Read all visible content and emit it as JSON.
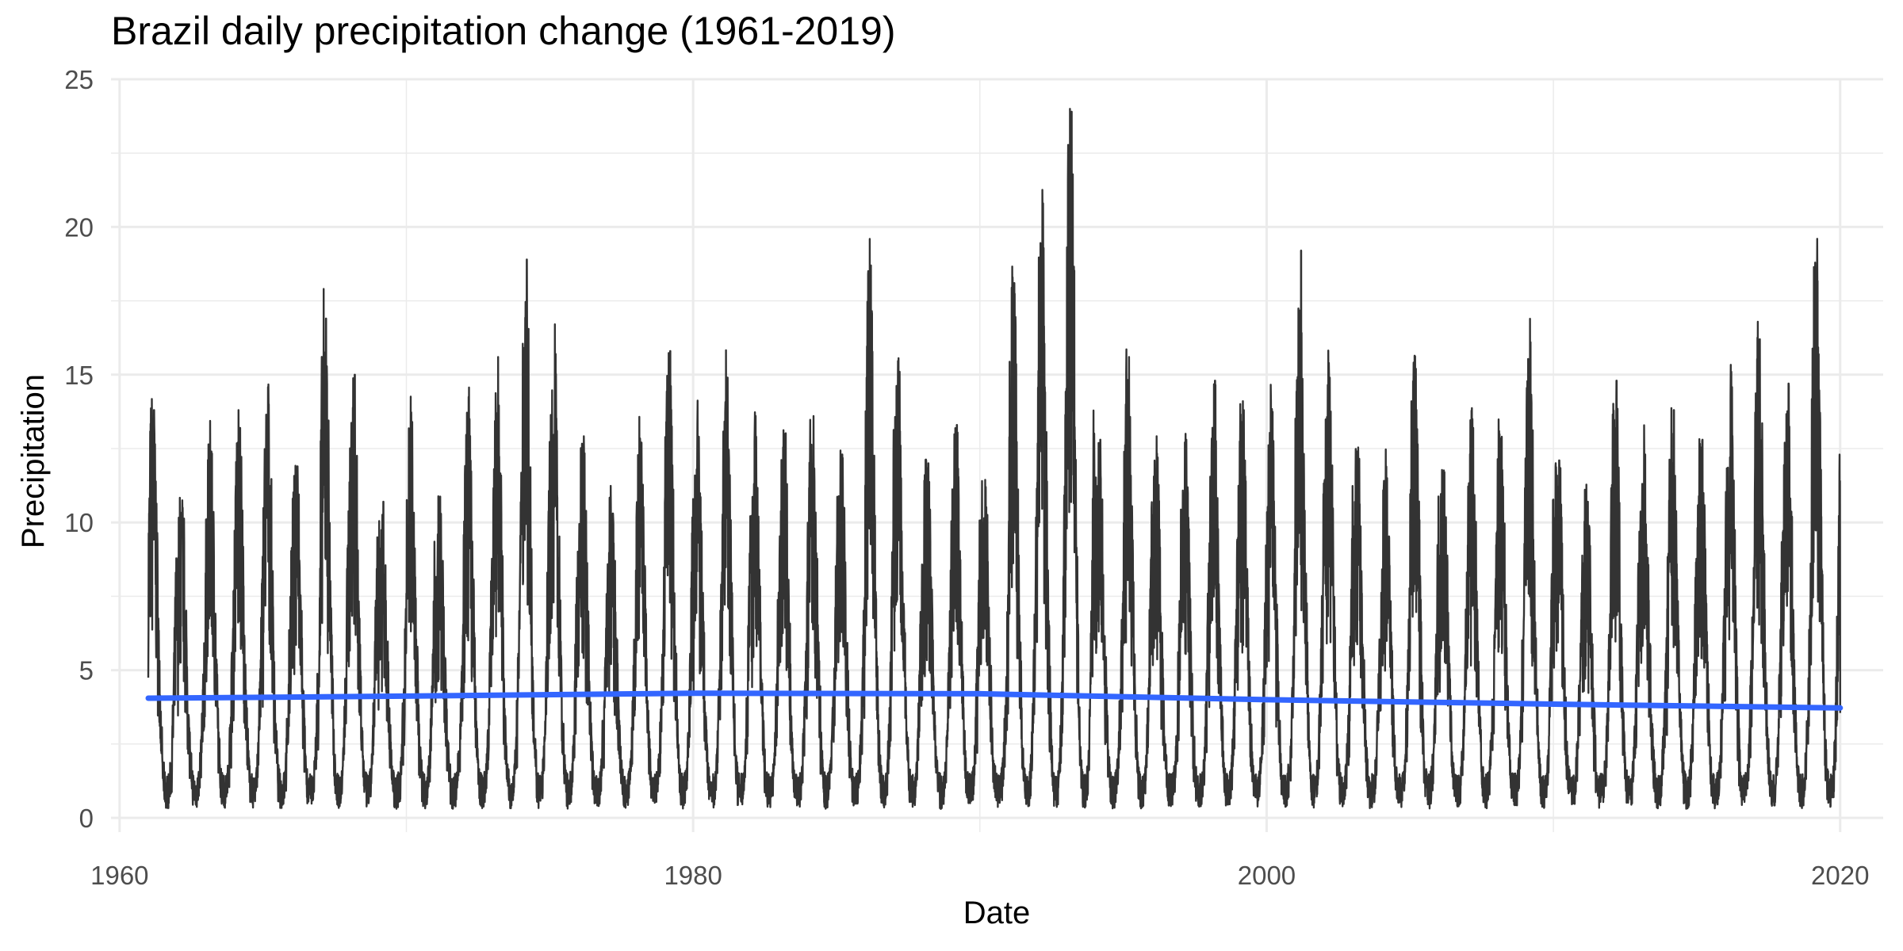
{
  "chart_data": {
    "type": "line",
    "title": "Brazil daily precipitation change (1961-2019)",
    "xlabel": "Date",
    "ylabel": "Precipitation",
    "xlim": [
      1959.7,
      2021.5
    ],
    "ylim": [
      0,
      25
    ],
    "x_ticks": [
      1960,
      1980,
      2000,
      2020
    ],
    "y_ticks": [
      0,
      5,
      10,
      15,
      20,
      25
    ],
    "grid": true,
    "legend": "none",
    "colors": {
      "series": "#333333",
      "trend": "#3366ff",
      "grid": "#ebebeb"
    },
    "series": [
      {
        "values_note_free": true,
        "x_start": 1961.0,
        "x_end": 2020.0,
        "peaks": [
          [
            1961.2,
            13.8
          ],
          [
            1962.2,
            10.5
          ],
          [
            1963.2,
            12.4
          ],
          [
            1964.2,
            13.2
          ],
          [
            1965.2,
            14.0
          ],
          [
            1966.2,
            11.9
          ],
          [
            1967.2,
            16.9
          ],
          [
            1968.2,
            15.0
          ],
          [
            1969.2,
            10.7
          ],
          [
            1970.2,
            13.4
          ],
          [
            1971.2,
            10.3
          ],
          [
            1972.2,
            13.5
          ],
          [
            1973.2,
            15.6
          ],
          [
            1974.1,
            17.5
          ],
          [
            1974.3,
            18.9
          ],
          [
            1975.2,
            15.7
          ],
          [
            1976.2,
            12.3
          ],
          [
            1977.2,
            10.3
          ],
          [
            1978.2,
            12.7
          ],
          [
            1979.2,
            15.8
          ],
          [
            1980.2,
            12.9
          ],
          [
            1981.2,
            14.9
          ],
          [
            1982.2,
            12.9
          ],
          [
            1983.2,
            13.0
          ],
          [
            1984.2,
            13.6
          ],
          [
            1985.2,
            12.3
          ],
          [
            1986.2,
            18.7
          ],
          [
            1987.2,
            15.1
          ],
          [
            1988.2,
            12.0
          ],
          [
            1989.2,
            13.3
          ],
          [
            1990.2,
            11.2
          ],
          [
            1991.2,
            18.1
          ],
          [
            1992.2,
            20.8
          ],
          [
            1993.2,
            23.9
          ],
          [
            1994.2,
            12.8
          ],
          [
            1995.2,
            15.6
          ],
          [
            1996.2,
            12.2
          ],
          [
            1997.2,
            12.8
          ],
          [
            1998.2,
            14.8
          ],
          [
            1999.2,
            13.8
          ],
          [
            2000.2,
            13.7
          ],
          [
            2001.2,
            19.2
          ],
          [
            2002.2,
            14.9
          ],
          [
            2003.2,
            12.0
          ],
          [
            2004.2,
            11.5
          ],
          [
            2005.2,
            15.2
          ],
          [
            2006.2,
            11.7
          ],
          [
            2007.2,
            13.2
          ],
          [
            2008.2,
            12.9
          ],
          [
            2009.2,
            16.1
          ],
          [
            2010.2,
            12.1
          ],
          [
            2011.2,
            10.7
          ],
          [
            2012.2,
            14.8
          ],
          [
            2013.2,
            12.3
          ],
          [
            2014.2,
            13.8
          ],
          [
            2015.2,
            12.8
          ],
          [
            2016.2,
            15.1
          ],
          [
            2017.2,
            16.2
          ],
          [
            2018.2,
            14.7
          ],
          [
            2019.2,
            19.6
          ],
          [
            2019.9,
            7.0
          ]
        ]
      },
      {
        "name": "",
        "x": [
          1961,
          1970,
          1980,
          1990,
          2000,
          2010,
          2020
        ],
        "y": [
          4.05,
          4.12,
          4.22,
          4.2,
          4.0,
          3.85,
          3.72
        ]
      }
    ]
  }
}
